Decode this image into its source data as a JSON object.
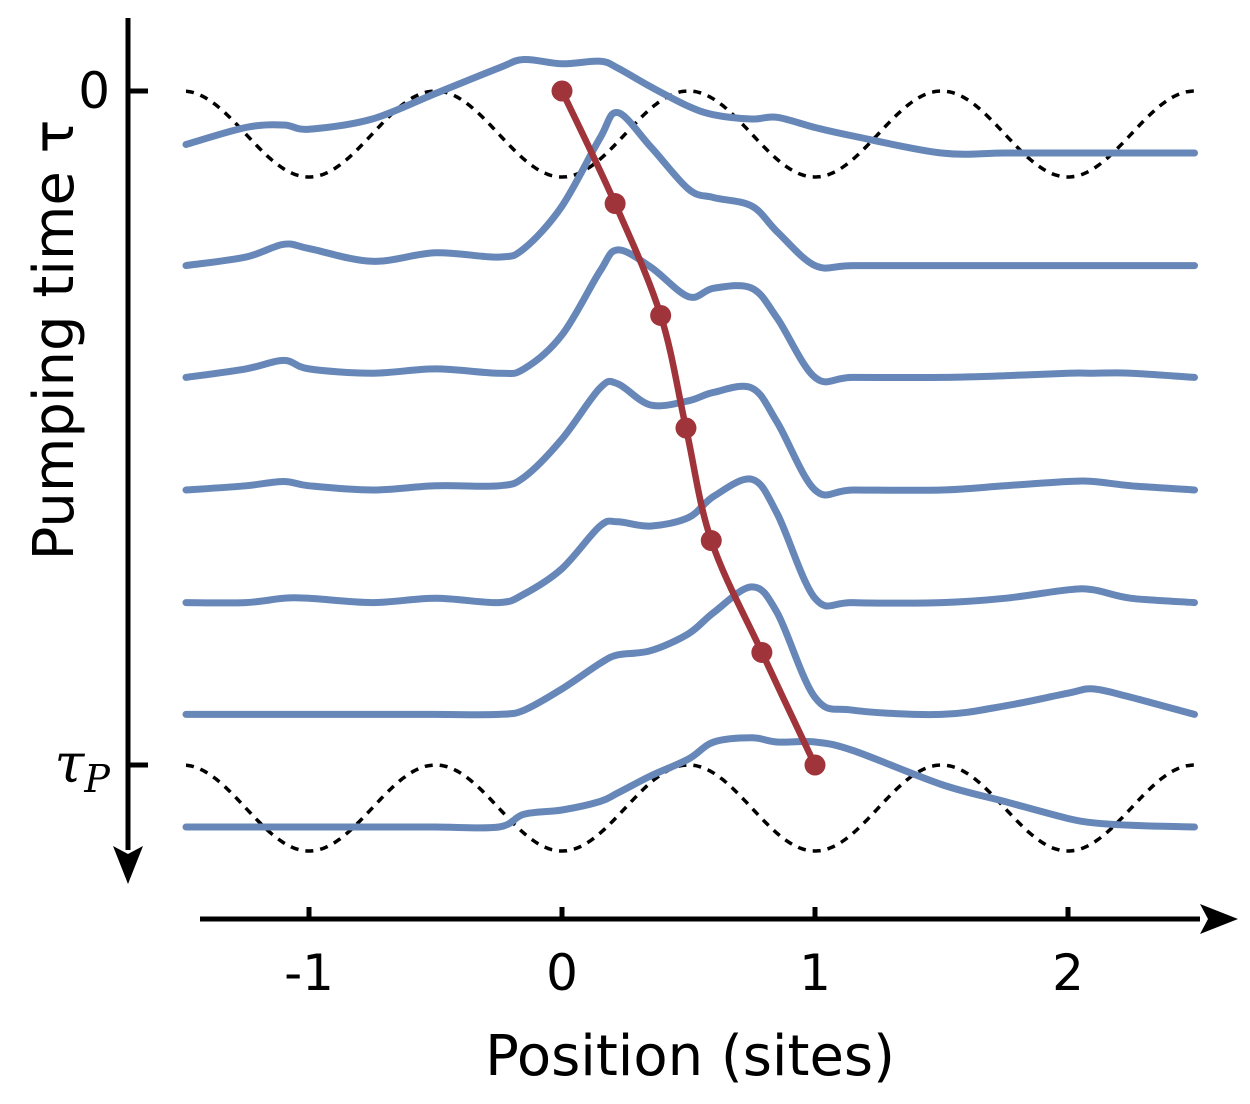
{
  "chart_data": {
    "type": "line",
    "title": "",
    "xlabel": "Position (sites)",
    "ylabel": "Pumping time τ",
    "xlim": [
      -1.45,
      2.5
    ],
    "x_ticks": [
      {
        "value": -1,
        "label": "-1"
      },
      {
        "value": 0,
        "label": "0"
      },
      {
        "value": 1,
        "label": "1"
      },
      {
        "value": 2,
        "label": "2"
      }
    ],
    "y_ticks": [
      {
        "value": 0,
        "label": "0"
      },
      {
        "value": 1,
        "label": "τP"
      }
    ],
    "y_axis_direction": "downward",
    "grid": false,
    "legend": "none",
    "colors": {
      "density": "#6687b8",
      "center_of_mass": "#a0343b",
      "lattice": "#000000",
      "axis": "#000000"
    },
    "density_profiles": {
      "x": [
        -1.5,
        -1.25,
        -1.1,
        -1.0,
        -0.75,
        -0.5,
        -0.25,
        -0.15,
        0.0,
        0.15,
        0.22,
        0.35,
        0.5,
        0.6,
        0.75,
        0.85,
        1.0,
        1.15,
        1.5,
        1.75,
        2.0,
        2.1,
        2.25,
        2.5
      ],
      "series": [
        {
          "tau": 0.0,
          "values": [
            0.1,
            0.3,
            0.33,
            0.28,
            0.4,
            0.7,
            1.0,
            1.1,
            1.05,
            1.08,
            1.0,
            0.78,
            0.55,
            0.45,
            0.4,
            0.42,
            0.3,
            0.2,
            0.0,
            0.0,
            0.0,
            0.0,
            0.0,
            0.0
          ]
        },
        {
          "tau": 0.167,
          "values": [
            0.0,
            0.1,
            0.25,
            0.2,
            0.05,
            0.15,
            0.1,
            0.2,
            0.7,
            1.5,
            1.8,
            1.4,
            0.9,
            0.8,
            0.7,
            0.4,
            0.0,
            0.0,
            0.0,
            0.0,
            0.0,
            0.0,
            0.0,
            0.0
          ]
        },
        {
          "tau": 0.333,
          "values": [
            0.0,
            0.1,
            0.2,
            0.1,
            0.05,
            0.1,
            0.05,
            0.1,
            0.5,
            1.25,
            1.5,
            1.3,
            0.95,
            1.05,
            1.05,
            0.7,
            0.0,
            0.0,
            0.0,
            0.02,
            0.05,
            0.05,
            0.05,
            0.0
          ]
        },
        {
          "tau": 0.5,
          "values": [
            0.0,
            0.05,
            0.1,
            0.05,
            0.0,
            0.05,
            0.05,
            0.15,
            0.6,
            1.2,
            1.25,
            1.0,
            1.05,
            1.15,
            1.2,
            0.8,
            0.0,
            0.0,
            0.0,
            0.05,
            0.1,
            0.1,
            0.05,
            0.0
          ]
        },
        {
          "tau": 0.667,
          "values": [
            0.0,
            0.0,
            0.05,
            0.05,
            0.0,
            0.05,
            0.0,
            0.1,
            0.4,
            0.9,
            0.95,
            0.9,
            1.0,
            1.25,
            1.45,
            1.05,
            0.05,
            0.0,
            0.0,
            0.05,
            0.15,
            0.15,
            0.05,
            0.0
          ]
        },
        {
          "tau": 0.833,
          "values": [
            0.0,
            0.0,
            0.0,
            0.0,
            0.0,
            0.0,
            0.0,
            0.05,
            0.3,
            0.6,
            0.7,
            0.75,
            0.95,
            1.2,
            1.5,
            1.2,
            0.2,
            0.05,
            0.0,
            0.1,
            0.25,
            0.3,
            0.2,
            0.0
          ]
        },
        {
          "tau": 1.0,
          "values": [
            0.0,
            0.0,
            0.0,
            0.0,
            0.0,
            0.0,
            0.0,
            0.15,
            0.2,
            0.3,
            0.4,
            0.6,
            0.8,
            1.0,
            1.05,
            1.0,
            1.0,
            0.9,
            0.5,
            0.3,
            0.1,
            0.05,
            0.02,
            0.0
          ]
        }
      ]
    },
    "center_of_mass": {
      "series_name": "",
      "tau": [
        0.0,
        0.167,
        0.333,
        0.5,
        0.667,
        0.833,
        1.0
      ],
      "position": [
        0.0,
        0.21,
        0.39,
        0.49,
        0.59,
        0.79,
        1.0
      ]
    },
    "lattice_potential": {
      "period": 1,
      "at_tau": [
        0.0,
        1.0
      ],
      "style": "dotted"
    }
  }
}
